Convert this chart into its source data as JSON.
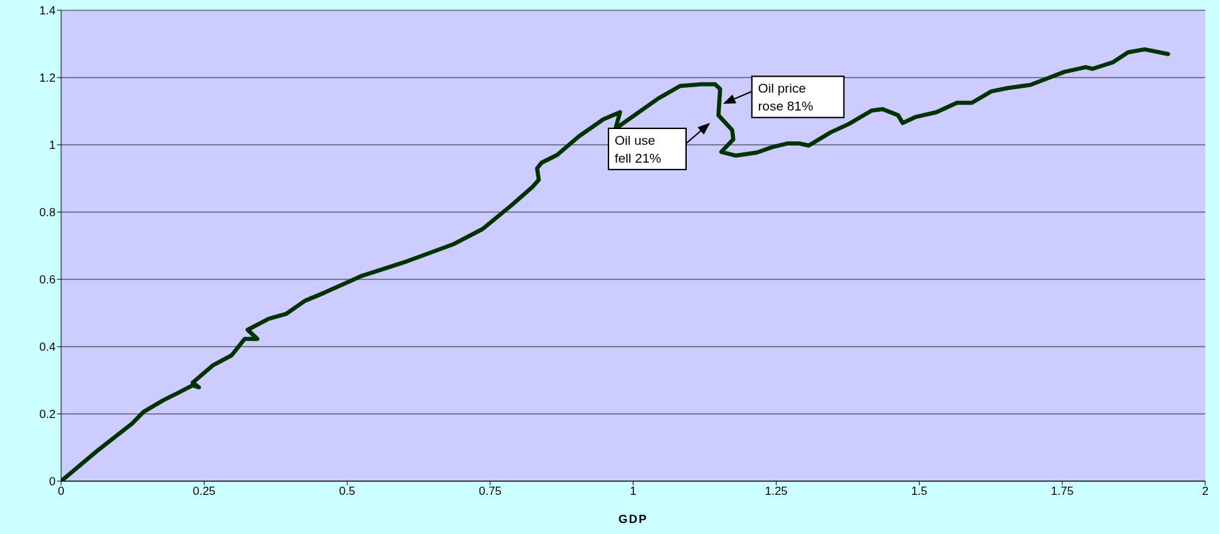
{
  "chart_data": {
    "type": "line",
    "xlabel": "GDP",
    "x": [
      0,
      0.063,
      0.124,
      0.144,
      0.178,
      0.205,
      0.23,
      0.241,
      0.23,
      0.265,
      0.298,
      0.321,
      0.343,
      0.326,
      0.363,
      0.393,
      0.426,
      0.461,
      0.525,
      0.605,
      0.685,
      0.737,
      0.787,
      0.824,
      0.835,
      0.832,
      0.84,
      0.867,
      0.905,
      0.948,
      0.977,
      0.969,
      1.044,
      1.082,
      1.119,
      1.143,
      1.152,
      1.149,
      1.173,
      1.175,
      1.154,
      1.179,
      1.216,
      1.243,
      1.269,
      1.29,
      1.307,
      1.345,
      1.377,
      1.417,
      1.436,
      1.463,
      1.471,
      1.494,
      1.53,
      1.566,
      1.592,
      1.626,
      1.655,
      1.694,
      1.754,
      1.791,
      1.803,
      1.838,
      1.865,
      1.894,
      1.935
    ],
    "series": [
      {
        "color": "#003300",
        "values": [
          0,
          0.09,
          0.171,
          0.206,
          0.24,
          0.263,
          0.285,
          0.279,
          0.293,
          0.344,
          0.374,
          0.423,
          0.423,
          0.45,
          0.483,
          0.497,
          0.536,
          0.561,
          0.61,
          0.654,
          0.704,
          0.75,
          0.82,
          0.875,
          0.896,
          0.93,
          0.947,
          0.97,
          1.025,
          1.076,
          1.097,
          1.048,
          1.138,
          1.175,
          1.18,
          1.18,
          1.166,
          1.088,
          1.044,
          1.016,
          0.979,
          0.968,
          0.977,
          0.993,
          1.004,
          1.004,
          0.998,
          1.037,
          1.062,
          1.102,
          1.106,
          1.088,
          1.065,
          1.083,
          1.097,
          1.125,
          1.125,
          1.159,
          1.169,
          1.178,
          1.217,
          1.231,
          1.226,
          1.245,
          1.275,
          1.284,
          1.27
        ]
      }
    ],
    "xlim": [
      0,
      2
    ],
    "xticks": [
      0,
      0.25,
      0.5,
      0.75,
      1,
      1.25,
      1.5,
      1.75,
      2
    ],
    "ylim": [
      0,
      1.4
    ],
    "yticks": [
      0,
      0.2,
      0.4,
      0.6,
      0.8,
      1,
      1.2,
      1.4
    ],
    "grid": "y",
    "marker": "none",
    "line_style": "solid",
    "annotations": [
      {
        "text": "Oil price rose 81%",
        "x": 1.157,
        "y": 1.122
      },
      "Oil use fell 21%"
    ]
  }
}
